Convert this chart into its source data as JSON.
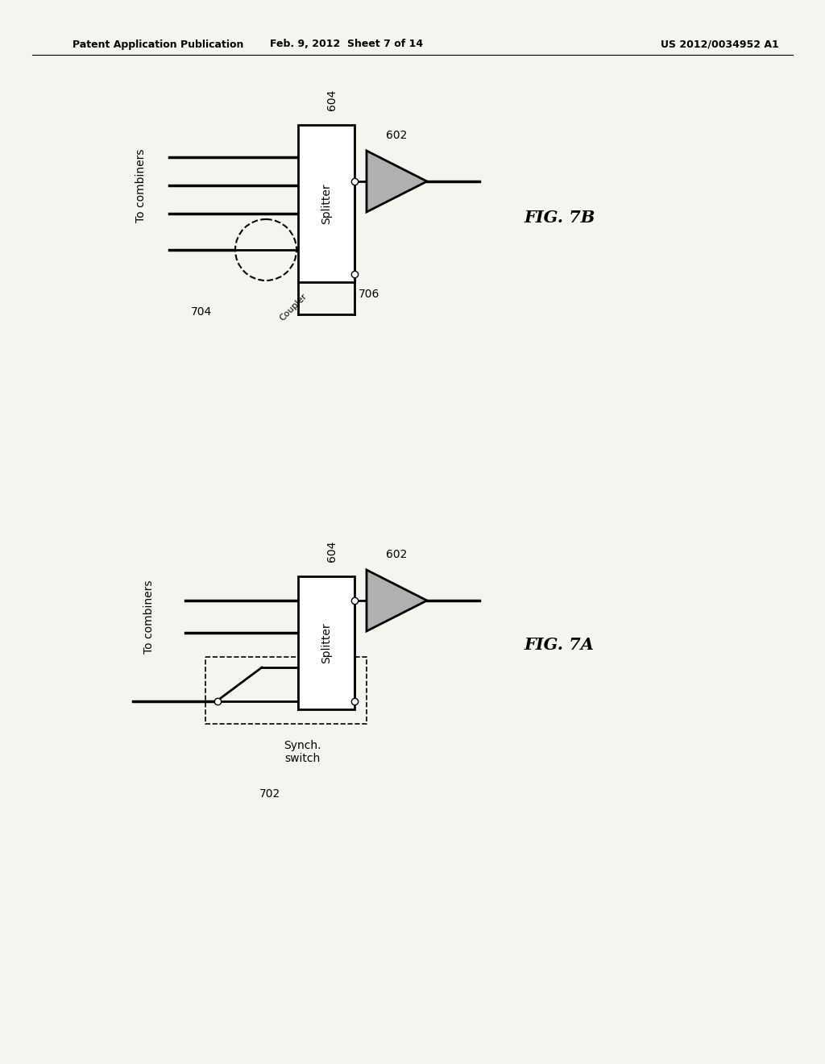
{
  "bg_color": "#f5f5f0",
  "header_left": "Patent Application Publication",
  "header_mid": "Feb. 9, 2012  Sheet 7 of 14",
  "header_right": "US 2012/0034952 A1",
  "line_color": "#000000",
  "gray_fill": "#b0b0b0",
  "white_fill": "#ffffff"
}
